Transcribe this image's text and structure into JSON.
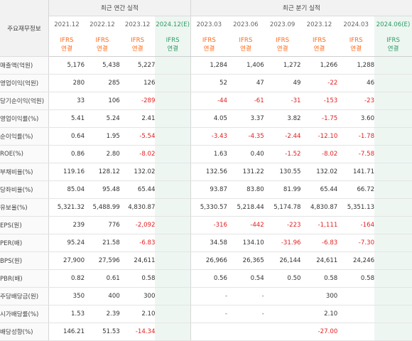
{
  "header": {
    "label_title": "주요재무정보",
    "annual_group": "최근 연간 실적",
    "quarter_group": "최근 분기 실적",
    "periods": [
      "2021.12",
      "2022.12",
      "2023.12",
      "2024.12(E)",
      "2023.03",
      "2023.06",
      "2023.09",
      "2023.12",
      "2024.03",
      "2024.06(E)"
    ],
    "std_top": "IFRS",
    "std_bottom": "연결"
  },
  "rows": [
    {
      "label": "매출액(억원)",
      "values": [
        "5,176",
        "5,438",
        "5,227",
        "",
        "1,284",
        "1,406",
        "1,272",
        "1,266",
        "1,288",
        ""
      ]
    },
    {
      "label": "영업이익(억원)",
      "values": [
        "280",
        "285",
        "126",
        "",
        "52",
        "47",
        "49",
        "-22",
        "46",
        ""
      ]
    },
    {
      "label": "당기순이익(억원)",
      "values": [
        "33",
        "106",
        "-289",
        "",
        "-44",
        "-61",
        "-31",
        "-153",
        "-23",
        ""
      ]
    },
    {
      "label": "영업이익률(%)",
      "values": [
        "5.41",
        "5.24",
        "2.41",
        "",
        "4.05",
        "3.37",
        "3.82",
        "-1.75",
        "3.60",
        ""
      ]
    },
    {
      "label": "순이익률(%)",
      "values": [
        "0.64",
        "1.95",
        "-5.54",
        "",
        "-3.43",
        "-4.35",
        "-2.44",
        "-12.10",
        "-1.78",
        ""
      ]
    },
    {
      "label": "ROE(%)",
      "values": [
        "0.86",
        "2.80",
        "-8.02",
        "",
        "1.63",
        "0.40",
        "-1.52",
        "-8.02",
        "-7.58",
        ""
      ]
    },
    {
      "label": "부채비율(%)",
      "values": [
        "119.16",
        "128.12",
        "132.02",
        "",
        "132.56",
        "131.22",
        "130.55",
        "132.02",
        "141.71",
        ""
      ]
    },
    {
      "label": "당좌비율(%)",
      "values": [
        "85.04",
        "95.48",
        "65.44",
        "",
        "93.87",
        "83.80",
        "81.99",
        "65.44",
        "66.72",
        ""
      ]
    },
    {
      "label": "유보율(%)",
      "values": [
        "5,321.32",
        "5,488.99",
        "4,830.87",
        "",
        "5,330.57",
        "5,218.44",
        "5,174.78",
        "4,830.87",
        "5,351.13",
        ""
      ]
    },
    {
      "label": "EPS(원)",
      "values": [
        "239",
        "776",
        "-2,092",
        "",
        "-316",
        "-442",
        "-223",
        "-1,111",
        "-164",
        ""
      ]
    },
    {
      "label": "PER(배)",
      "values": [
        "95.24",
        "21.58",
        "-6.83",
        "",
        "34.58",
        "134.10",
        "-31.96",
        "-6.83",
        "-7.30",
        ""
      ]
    },
    {
      "label": "BPS(원)",
      "values": [
        "27,900",
        "27,596",
        "24,611",
        "",
        "26,966",
        "26,365",
        "26,144",
        "24,611",
        "24,246",
        ""
      ]
    },
    {
      "label": "PBR(배)",
      "values": [
        "0.82",
        "0.61",
        "0.58",
        "",
        "0.56",
        "0.54",
        "0.50",
        "0.58",
        "0.58",
        ""
      ]
    },
    {
      "label": "주당배당금(원)",
      "values": [
        "350",
        "400",
        "300",
        "",
        "-",
        "-",
        "",
        "300",
        "",
        ""
      ]
    },
    {
      "label": "시가배당률(%)",
      "values": [
        "1.53",
        "2.39",
        "2.10",
        "",
        "-",
        "-",
        "",
        "2.10",
        "",
        ""
      ]
    },
    {
      "label": "배당성향(%)",
      "values": [
        "146.21",
        "51.53",
        "-14.34",
        "",
        "",
        "",
        "",
        "-27.00",
        "",
        ""
      ]
    }
  ],
  "colors": {
    "negative": "#e52020",
    "ifrs": "#ff6a1a",
    "estimate": "#2d9b63",
    "estimate_bg": "#eef6f2"
  }
}
